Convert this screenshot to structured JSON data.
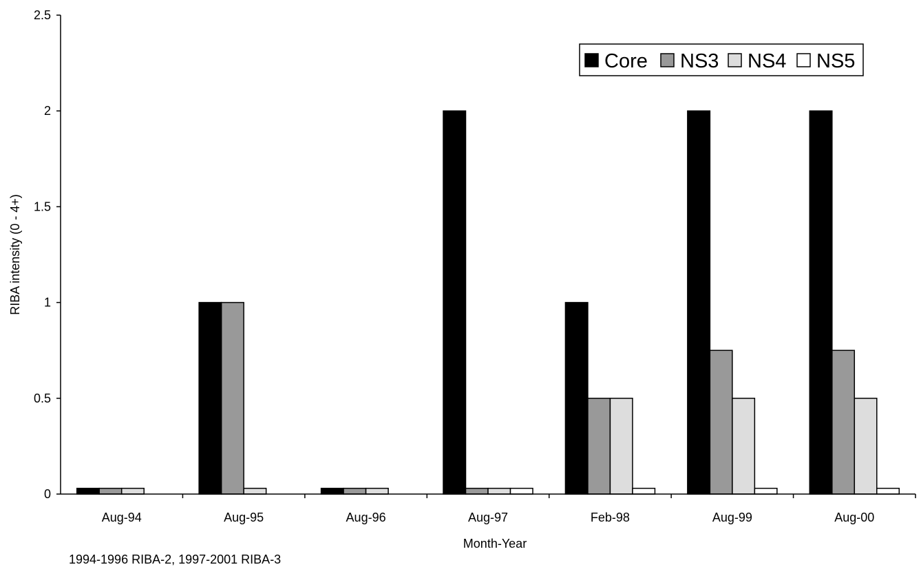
{
  "chart_data": {
    "type": "bar",
    "xlabel": "Month-Year",
    "ylabel": "RIBA intensity (0 - 4+)",
    "ylim": [
      0,
      2.5
    ],
    "yticks": [
      0,
      0.5,
      1,
      1.5,
      2,
      2.5
    ],
    "ytick_labels": [
      "0",
      "0.5",
      "1",
      "1.5",
      "2",
      "2.5"
    ],
    "categories": [
      "Aug-94",
      "Aug-95",
      "Aug-96",
      "Aug-97",
      "Feb-98",
      "Aug-99",
      "Aug-00"
    ],
    "series": [
      {
        "name": "Core",
        "color": "#000000",
        "values": [
          0.03,
          1,
          0.03,
          2,
          1,
          2,
          2
        ]
      },
      {
        "name": "NS3",
        "color": "#999999",
        "values": [
          0.03,
          1,
          0.03,
          0.03,
          0.5,
          0.75,
          0.75
        ]
      },
      {
        "name": "NS4",
        "color": "#dddddd",
        "values": [
          0.03,
          0.03,
          0.03,
          0.03,
          0.5,
          0.5,
          0.5
        ]
      },
      {
        "name": "NS5",
        "color": "#ffffff",
        "values": [
          0,
          0,
          0,
          0.03,
          0.03,
          0.03,
          0.03
        ]
      }
    ],
    "legend_position": "top-right",
    "grid": false,
    "footnote": "1994-1996 RIBA-2,  1997-2001 RIBA-3"
  }
}
